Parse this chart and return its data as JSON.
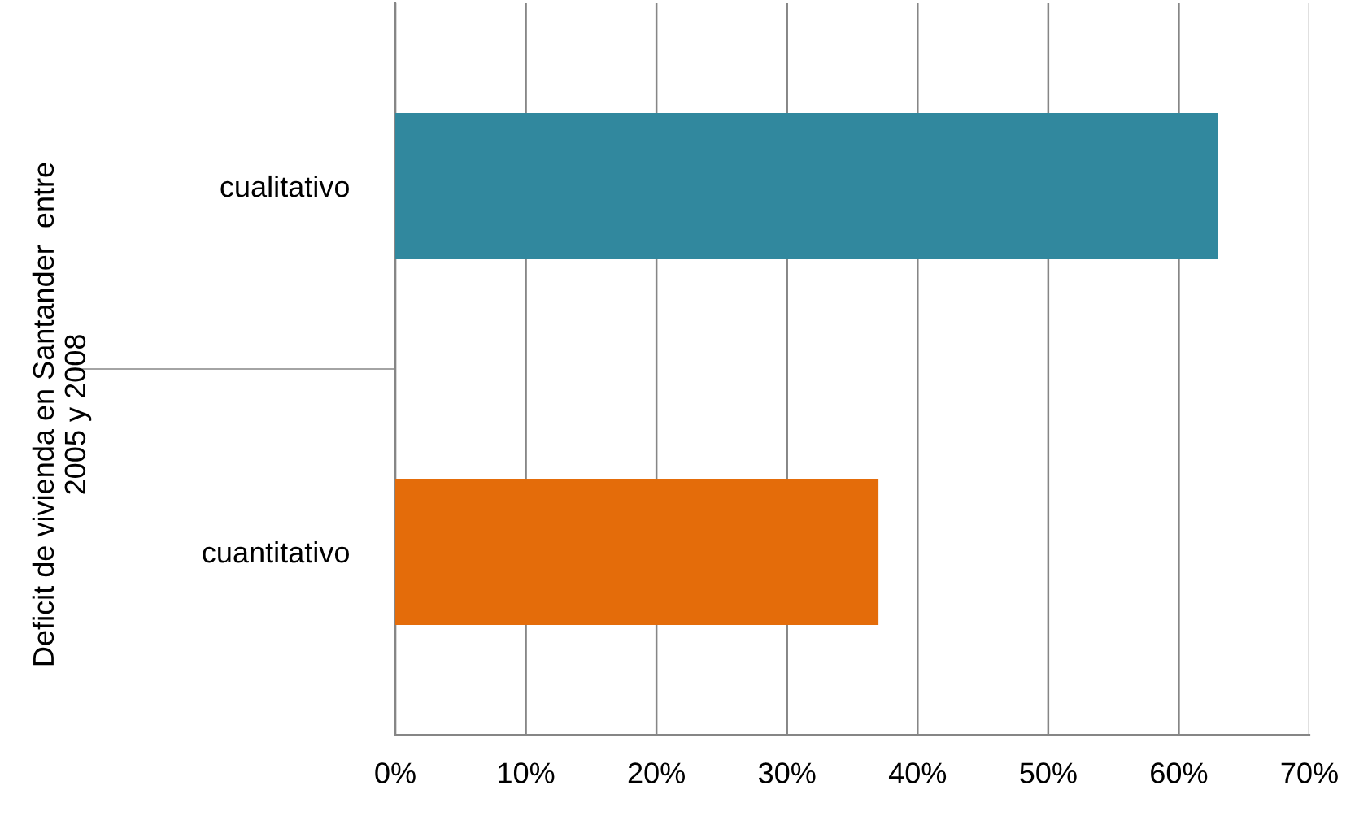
{
  "chart_data": {
    "type": "bar",
    "orientation": "horizontal",
    "ylabel": "Deficit de vivienda en Santander  entre\n2005 y 2008",
    "categories": [
      "cualitativo",
      "cuantitativo"
    ],
    "values": [
      63,
      37
    ],
    "colors": [
      "#31889e",
      "#e46c0a"
    ],
    "xlim": [
      0,
      70
    ],
    "xticks": [
      {
        "value": 0,
        "label": "0%"
      },
      {
        "value": 10,
        "label": "10%"
      },
      {
        "value": 20,
        "label": "20%"
      },
      {
        "value": 30,
        "label": "30%"
      },
      {
        "value": 40,
        "label": "40%"
      },
      {
        "value": 50,
        "label": "50%"
      },
      {
        "value": 60,
        "label": "60%"
      },
      {
        "value": 70,
        "label": "70%"
      }
    ],
    "grid": "x",
    "legend": false
  }
}
